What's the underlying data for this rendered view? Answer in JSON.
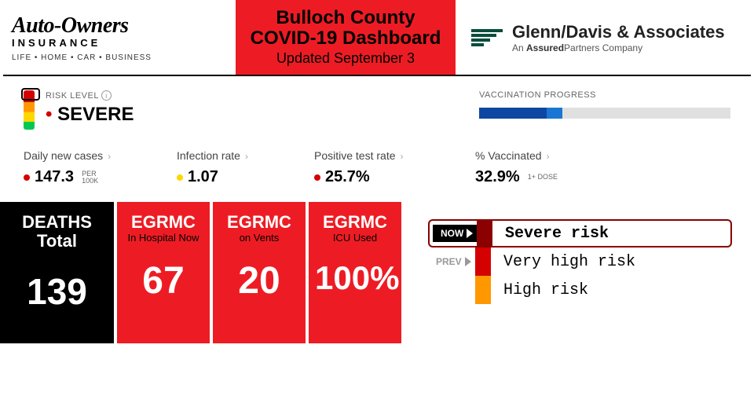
{
  "header": {
    "sponsor_left": {
      "title": "Auto-Owners",
      "sub": "INSURANCE",
      "tag": "LIFE • HOME • CAR • BUSINESS"
    },
    "title": {
      "line1": "Bulloch County",
      "line2": "COVID-19 Dashboard",
      "updated": "Updated September 3",
      "bg_color": "#ed1c24"
    },
    "sponsor_right": {
      "name": "Glenn/Davis & Associates",
      "tagline_prefix": "An ",
      "tagline_bold": "Assured",
      "tagline_rest": "Partners Company",
      "mark_color": "#0a4d3c"
    }
  },
  "risk": {
    "label": "RISK LEVEL",
    "level": "SEVERE",
    "gauge_colors": [
      "#d50000",
      "#ff9800",
      "#ffd600",
      "#00c853"
    ],
    "dot_color": "#d50000"
  },
  "vaccination": {
    "label": "VACCINATION PROGRESS",
    "bar_bg": "#e0e0e0",
    "fully_pct": 27,
    "partial_extra_pct": 6,
    "color_full": "#0d47a1",
    "color_partial": "#1976d2"
  },
  "metrics": {
    "daily_new": {
      "label": "Daily new cases",
      "value": "147.3",
      "unit_top": "PER",
      "unit_bot": "100K",
      "dot": "#d50000"
    },
    "infection_rate": {
      "label": "Infection rate",
      "value": "1.07",
      "dot": "#ffd600"
    },
    "positive_rate": {
      "label": "Positive test rate",
      "value": "25.7%",
      "dot": "#d50000"
    },
    "vaccinated": {
      "label": "% Vaccinated",
      "value": "32.9%",
      "unit": "1+ DOSE"
    }
  },
  "cards": {
    "deaths": {
      "line1": "DEATHS",
      "line2": "Total",
      "value": "139",
      "bg": "#000000",
      "value_color": "#ffffff"
    },
    "hospital": {
      "title": "EGRMC",
      "sub": "In Hospital Now",
      "value": "67",
      "bg": "#ed1c24"
    },
    "vents": {
      "title": "EGRMC",
      "sub": "on Vents",
      "value": "20",
      "bg": "#ed1c24"
    },
    "icu": {
      "title": "EGRMC",
      "sub": "ICU Used",
      "value": "100%",
      "bg": "#ed1c24"
    }
  },
  "legend": {
    "now_label": "NOW",
    "prev_label": "PREV",
    "items": [
      {
        "text": "Severe risk",
        "color": "#8b0000"
      },
      {
        "text": "Very high risk",
        "color": "#d50000"
      },
      {
        "text": "High risk",
        "color": "#ff9800"
      }
    ]
  }
}
